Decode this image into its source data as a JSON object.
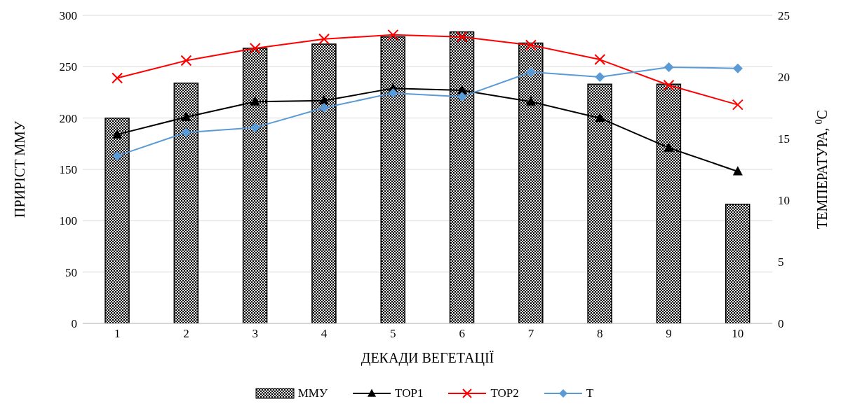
{
  "chart_data": {
    "type": "bar",
    "xlabel": "ДЕКАДИ ВЕГЕТАЦІЇ",
    "ylabel": "ПРИРІСТ ММУ",
    "y2label": "ТЕМПЕРАТУРА, $^{0}$C",
    "categories": [
      "1",
      "2",
      "3",
      "4",
      "5",
      "6",
      "7",
      "8",
      "9",
      "10"
    ],
    "series": [
      {
        "name": "ММУ",
        "color": "#000000",
        "values": [
          200,
          234,
          268,
          272,
          279,
          284,
          273,
          233,
          233,
          116
        ]
      },
      {
        "name": "ТОР1",
        "type": "line",
        "color": "#000000",
        "marker": "triangle",
        "values": [
          184,
          201,
          216,
          217,
          229,
          227,
          216,
          200,
          171,
          148
        ]
      },
      {
        "name": "ТОР2",
        "type": "line",
        "color": "#ff0000",
        "marker": "cross",
        "values": [
          239,
          256,
          268,
          277,
          281,
          279,
          271,
          257,
          232,
          213
        ]
      },
      {
        "name": "T",
        "type": "line",
        "color": "#5b9bd5",
        "marker": "diamond",
        "axis": "y2",
        "values": [
          13.6,
          15.5,
          15.9,
          17.5,
          18.7,
          18.4,
          20.4,
          20.0,
          20.8,
          20.7
        ]
      }
    ],
    "ylim": [
      0,
      300
    ],
    "yticks": [
      0,
      50,
      100,
      150,
      200,
      250,
      300
    ],
    "y2lim": [
      0,
      25
    ],
    "y2ticks": [
      0,
      5,
      10,
      15,
      20,
      25
    ],
    "grid": "y",
    "legend": "bottom"
  }
}
